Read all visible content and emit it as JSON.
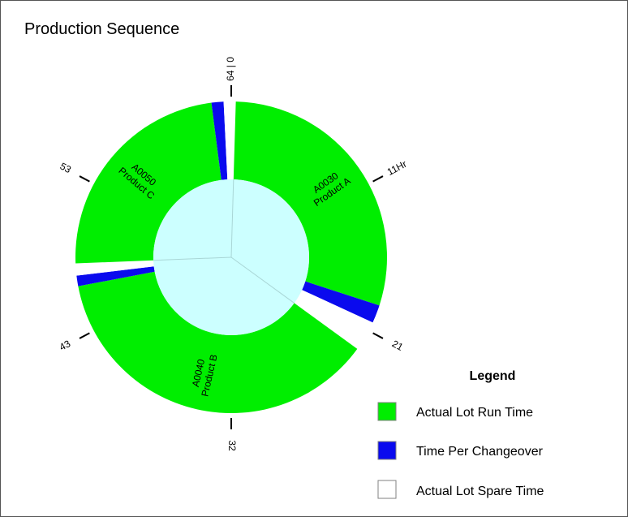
{
  "chart_data": {
    "type": "donut",
    "title": "Production Sequence",
    "total": 64,
    "ticks": [
      {
        "value": 0,
        "label": "64 | 0"
      },
      {
        "value": 11,
        "label": "11Hr"
      },
      {
        "value": 21,
        "label": "21"
      },
      {
        "value": 32,
        "label": "32"
      },
      {
        "value": 43,
        "label": "43"
      },
      {
        "value": 53,
        "label": "53"
      }
    ],
    "segments": [
      {
        "kind": "spare",
        "start": 0,
        "end": 0.3
      },
      {
        "kind": "run",
        "start": 0.3,
        "end": 19.2
      },
      {
        "kind": "changeover",
        "start": 19.2,
        "end": 20.4
      },
      {
        "kind": "spare",
        "start": 20.4,
        "end": 22.4
      },
      {
        "kind": "run",
        "start": 22.4,
        "end": 46.1
      },
      {
        "kind": "changeover",
        "start": 46.1,
        "end": 46.8
      },
      {
        "kind": "spare",
        "start": 46.8,
        "end": 47.6
      },
      {
        "kind": "run",
        "start": 47.6,
        "end": 62.7
      },
      {
        "kind": "changeover",
        "start": 62.7,
        "end": 63.5
      },
      {
        "kind": "spare",
        "start": 63.5,
        "end": 64
      }
    ],
    "lots": [
      {
        "lot": "A0030",
        "product": "Product A",
        "start": 0.3,
        "end": 19.2
      },
      {
        "lot": "A0040",
        "product": "Product B",
        "start": 22.4,
        "end": 46.1
      },
      {
        "lot": "A0050",
        "product": "Product C",
        "start": 47.6,
        "end": 62.7
      }
    ],
    "legend_position": "bottom-right"
  },
  "legend": {
    "title": "Legend",
    "items": [
      {
        "key": "run",
        "label": "Actual Lot Run Time"
      },
      {
        "key": "changeover",
        "label": "Time Per Changeover"
      },
      {
        "key": "spare",
        "label": "Actual Lot Spare Time"
      }
    ]
  },
  "colors": {
    "run": "#00ee00",
    "changeover": "#0a0aee",
    "spare": "#ffffff",
    "hub": "#ccffff",
    "hub_lines": "#a9d6d6",
    "legend_border": "#808080"
  }
}
